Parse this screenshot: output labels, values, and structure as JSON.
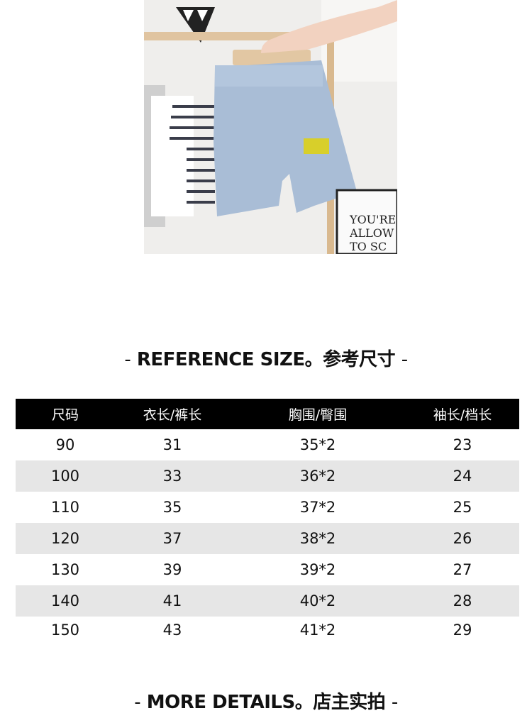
{
  "photo": {
    "alt_subject": "light-wash denim shorts on hanger",
    "poster_text": [
      "YOU'RE",
      "ALLOW",
      "TO SC"
    ]
  },
  "reference_title": {
    "dash_left": "-",
    "en": "REFERENCE SIZE",
    "dot": "。",
    "zh": "参考尺寸",
    "dash_right": "-"
  },
  "size_table": {
    "headers": [
      "尺码",
      "衣长/裤长",
      "胸围/臀围",
      "袖长/档长"
    ],
    "rows": [
      [
        "90",
        "31",
        "35*2",
        "23"
      ],
      [
        "100",
        "33",
        "36*2",
        "24"
      ],
      [
        "110",
        "35",
        "37*2",
        "25"
      ],
      [
        "120",
        "37",
        "38*2",
        "26"
      ],
      [
        "130",
        "39",
        "39*2",
        "27"
      ],
      [
        "140",
        "41",
        "40*2",
        "28"
      ],
      [
        "150",
        "43",
        "41*2",
        "29"
      ]
    ],
    "header_bg": "#000000",
    "alt_row_bg": "#e6e6e6"
  },
  "details_title": {
    "dash_left": "-",
    "en": "MORE DETAILS",
    "dot": "。",
    "zh": "店主实拍",
    "dash_right": "-"
  }
}
